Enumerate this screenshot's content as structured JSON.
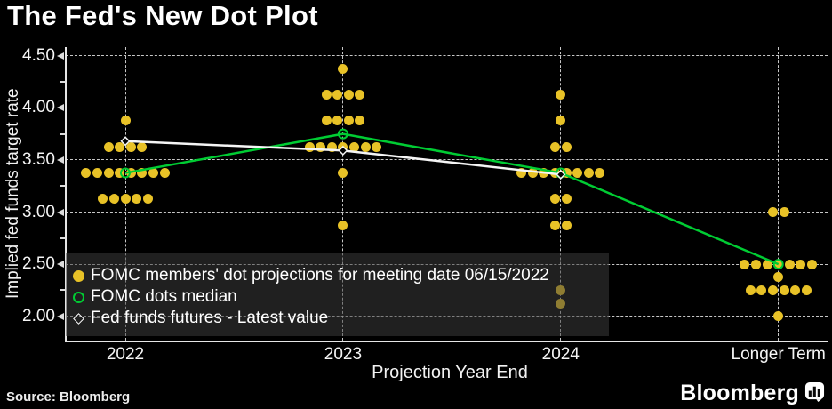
{
  "footer": {
    "source": "Source: Bloomberg",
    "brand": "Bloomberg"
  },
  "chart_data": {
    "type": "scatter",
    "title": "The Fed's New Dot Plot",
    "xlabel": "Projection Year End",
    "ylabel": "Implied fed funds target rate",
    "categories": [
      "2022",
      "2023",
      "2024",
      "Longer Term"
    ],
    "y_axis": {
      "tick_min": 2.0,
      "tick_max": 4.5,
      "major_ticks": [
        4.5,
        4.0,
        3.5,
        3.0,
        2.5,
        2.0
      ],
      "minor_step": 0.25,
      "label_format": "two-decimals"
    },
    "grid": "dashed",
    "background_color": "#000000",
    "dot_color": "#e8c227",
    "dot_clusters": [
      {
        "category": "2022",
        "points": [
          {
            "value": 3.875,
            "count": 1
          },
          {
            "value": 3.625,
            "count": 4
          },
          {
            "value": 3.375,
            "count": 8
          },
          {
            "value": 3.125,
            "count": 5
          }
        ]
      },
      {
        "category": "2023",
        "points": [
          {
            "value": 4.375,
            "count": 1
          },
          {
            "value": 4.125,
            "count": 4
          },
          {
            "value": 3.875,
            "count": 4
          },
          {
            "value": 3.625,
            "count": 7
          },
          {
            "value": 3.375,
            "count": 1
          },
          {
            "value": 2.875,
            "count": 1
          }
        ]
      },
      {
        "category": "2024",
        "points": [
          {
            "value": 4.125,
            "count": 1
          },
          {
            "value": 3.875,
            "count": 1
          },
          {
            "value": 3.625,
            "count": 2
          },
          {
            "value": 3.375,
            "count": 8
          },
          {
            "value": 3.125,
            "count": 2
          },
          {
            "value": 2.875,
            "count": 2
          },
          {
            "value": 2.25,
            "count": 1
          },
          {
            "value": 2.125,
            "count": 1
          }
        ]
      },
      {
        "category": "Longer Term",
        "points": [
          {
            "value": 3.0,
            "count": 2
          },
          {
            "value": 2.5,
            "count": 7
          },
          {
            "value": 2.375,
            "count": 1
          },
          {
            "value": 2.25,
            "count": 6
          },
          {
            "value": 2.0,
            "count": 1
          }
        ]
      }
    ],
    "series": [
      {
        "name": "FOMC dots median",
        "type": "line",
        "marker": "hollow-circle",
        "color": "#00cc33",
        "values": [
          3.375,
          3.75,
          3.375,
          2.5
        ]
      },
      {
        "name": "Fed funds futures - Latest value",
        "type": "line",
        "marker": "hollow-diamond",
        "color": "#f5f5f5",
        "values": [
          3.68,
          3.59,
          3.36,
          null
        ]
      }
    ],
    "legend": {
      "position": "overlay-bottom-left",
      "items": [
        {
          "marker": "filled-circle",
          "color": "#e8c227",
          "label": "FOMC members' dot projections for meeting date 06/15/2022"
        },
        {
          "marker": "hollow-circle",
          "color": "#00cc33",
          "label": "FOMC dots median"
        },
        {
          "marker": "hollow-diamond",
          "color": "#ffffff",
          "label": "Fed funds futures - Latest value"
        }
      ]
    }
  }
}
